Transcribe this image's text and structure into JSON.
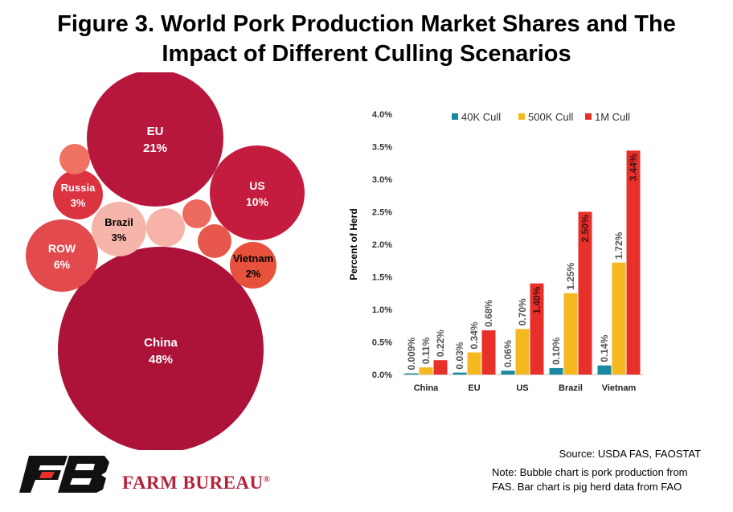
{
  "title": {
    "line1": "Figure 3. World Pork Production Market Shares and The",
    "line2": "Impact of Different Culling Scenarios"
  },
  "chart_data": [
    {
      "type": "bubble",
      "bubbles": [
        {
          "label": "China",
          "value": "48%"
        },
        {
          "label": "EU",
          "value": "21%"
        },
        {
          "label": "US",
          "value": "10%"
        },
        {
          "label": "ROW",
          "value": "6%"
        },
        {
          "label": "Russia",
          "value": "3%"
        },
        {
          "label": "Brazil",
          "value": "3%"
        },
        {
          "label": "Vietnam",
          "value": "2%"
        },
        {
          "label": "",
          "value": ""
        },
        {
          "label": "",
          "value": ""
        },
        {
          "label": "",
          "value": ""
        },
        {
          "label": "",
          "value": ""
        }
      ]
    },
    {
      "type": "bar",
      "categories": [
        "China",
        "EU",
        "US",
        "Brazil",
        "Vietnam"
      ],
      "series": [
        {
          "name": "40K Cull",
          "color": "#1a8aa0",
          "values": [
            0.009,
            0.03,
            0.06,
            0.1,
            0.14
          ],
          "labels": [
            "0.009%",
            "0.03%",
            "0.06%",
            "0.10%",
            "0.14%"
          ]
        },
        {
          "name": "500K Cull",
          "color": "#f5b821",
          "values": [
            0.11,
            0.34,
            0.7,
            1.25,
            1.72
          ],
          "labels": [
            "0.11%",
            "0.34%",
            "0.70%",
            "1.25%",
            "1.72%"
          ]
        },
        {
          "name": "1M Cull",
          "color": "#e8302a",
          "values": [
            0.22,
            0.68,
            1.4,
            2.5,
            3.44
          ],
          "labels": [
            "0.22%",
            "0.68%",
            "1.40%",
            "2.50%",
            "3.44%"
          ]
        }
      ],
      "ylabel": "Percent of Herd",
      "ylim": [
        0,
        4.0
      ],
      "yticks": [
        "0.0%",
        "0.5%",
        "1.0%",
        "1.5%",
        "2.0%",
        "2.5%",
        "3.0%",
        "3.5%",
        "4.0%"
      ],
      "legend_position": "top",
      "grid": false
    }
  ],
  "footer": {
    "source": "Source: USDA FAS, FAOSTAT",
    "note_line1": "Note: Bubble chart is pork production from",
    "note_line2": "FAS. Bar chart is pig herd data from FAO",
    "logo_text": "FARM BUREAU",
    "logo_mark": "®"
  }
}
